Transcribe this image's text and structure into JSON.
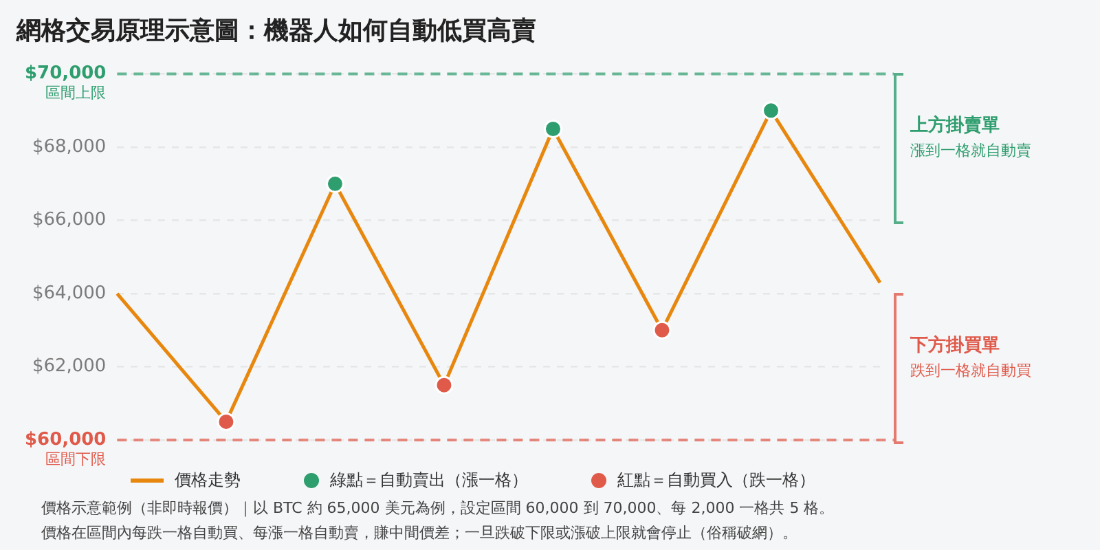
{
  "chart_data": {
    "type": "line",
    "title": "網格交易原理示意圖：機器人如何自動低買高賣",
    "categories": [
      null,
      null,
      null,
      null,
      null,
      null,
      null,
      null
    ],
    "series": [
      {
        "name": "價格走勢",
        "color": "#e8870e",
        "values": [
          64000,
          60500,
          67000,
          61500,
          68500,
          63000,
          69000,
          64300
        ]
      },
      {
        "name": "綠點＝自動賣出（漲一格）",
        "type": "scatter",
        "marker": "circle",
        "color": "#2e9e6e",
        "values": [
          null,
          null,
          67000,
          null,
          68500,
          null,
          69000,
          null
        ]
      },
      {
        "name": "紅點＝自動買入（跌一格）",
        "type": "scatter",
        "marker": "circle",
        "color": "#e05a4a",
        "values": [
          null,
          60500,
          null,
          61500,
          null,
          63000,
          null,
          null
        ]
      }
    ],
    "ylim": [
      60000,
      70000
    ],
    "yticks": [
      {
        "value": 60000,
        "label": "$60,000"
      },
      {
        "value": 62000,
        "label": "$62,000"
      },
      {
        "value": 64000,
        "label": "$64,000"
      },
      {
        "value": 66000,
        "label": "$66,000"
      },
      {
        "value": 68000,
        "label": "$68,000"
      },
      {
        "value": 70000,
        "label": "$70,000"
      }
    ],
    "grid": "y",
    "legend": "bottom",
    "ref_lines": [
      {
        "axis": "y",
        "value": 70000,
        "label": "區間上限",
        "color": "#2e9e6e",
        "line_style": "dashed"
      },
      {
        "axis": "y",
        "value": 60000,
        "label": "區間下限",
        "color": "#e05a4a",
        "line_style": "dashed"
      }
    ],
    "annotations": [
      "上方掛賣單",
      "漲到一格就自動賣",
      "下方掛買單",
      "跌到一格就自動買",
      "價格示意範例（非即時報價）｜以 BTC 約 65,000 美元為例，設定區間 60,000 到 70,000、每 2,000 一格共 5 格。",
      "價格在區間內每跌一格自動買、每漲一格自動賣，賺中間價差；一旦跌破下限或漲破上限就會停止（俗稱破網）。"
    ]
  }
}
